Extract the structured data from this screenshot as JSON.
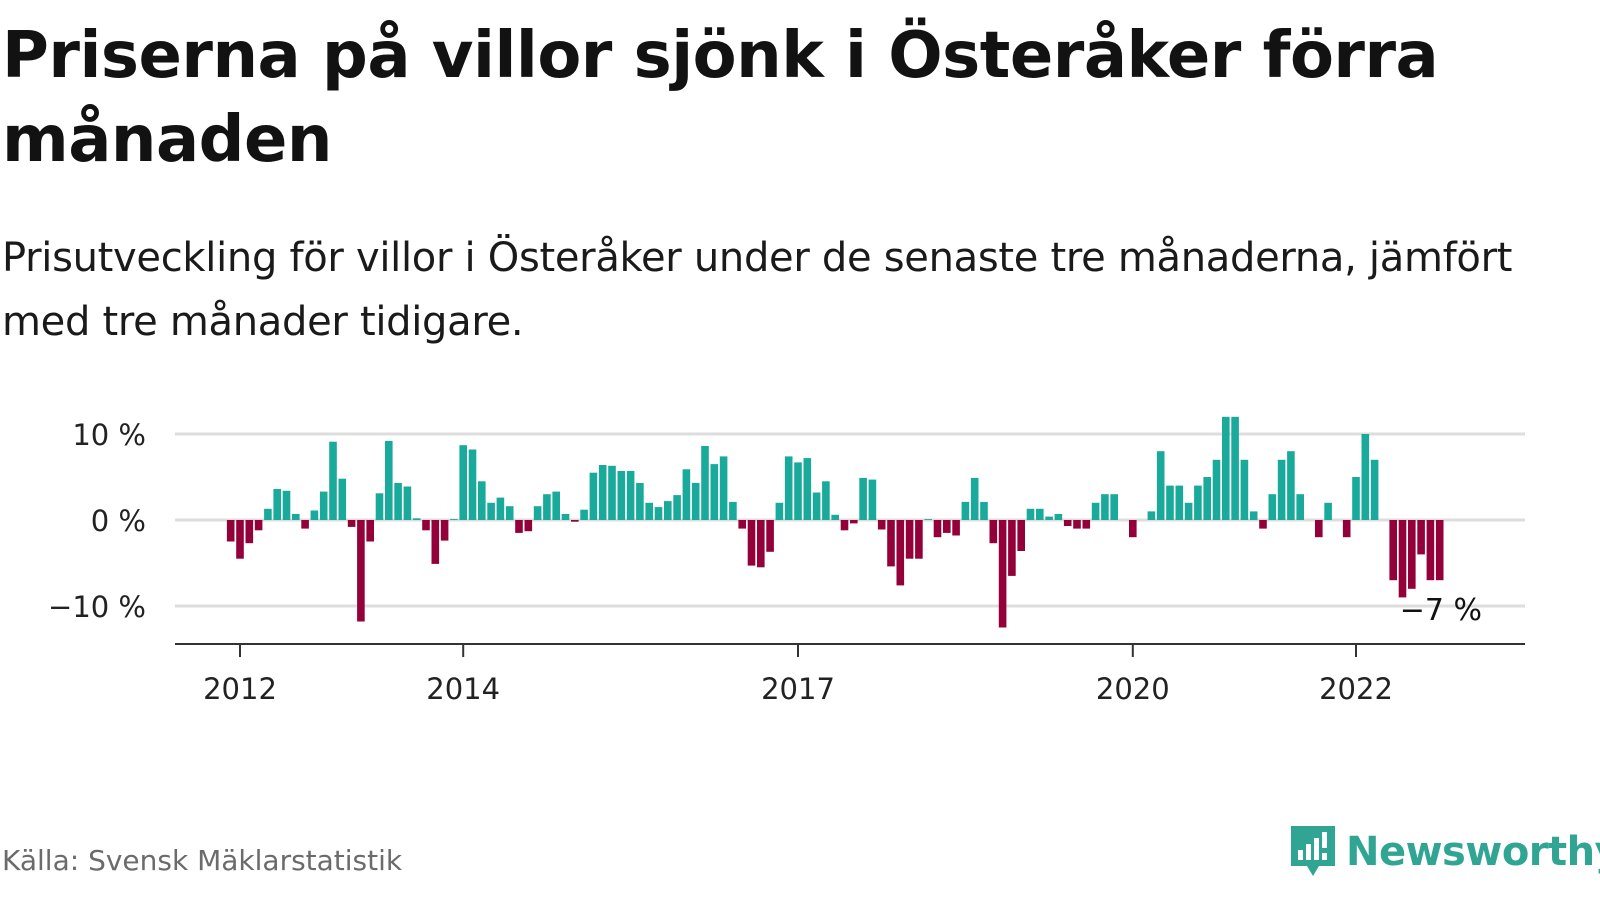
{
  "title": "Priserna på villor sjönk i Österåker förra månaden",
  "subtitle": "Prisutveckling för villor i Österåker under de senaste tre månaderna, jämfört med tre månader tidigare.",
  "source": "Källa: Svensk Mäklarstatistik",
  "logo": {
    "name": "Newsworthy",
    "icon": "bar-chart-speech-bubble-icon"
  },
  "colors": {
    "positive": "#1aaa9b",
    "negative": "#93003a",
    "grid": "#dddddd",
    "axis": "#333333",
    "brand": "#31a594"
  },
  "chart_data": {
    "type": "bar",
    "unit": "%",
    "ylim": [
      -15,
      13
    ],
    "y_ticks": [
      10,
      0,
      -10
    ],
    "y_tick_labels": [
      "10 %",
      "0 %",
      "−10 %"
    ],
    "x_tick_labels": [
      "2012",
      "2014",
      "2017",
      "2020",
      "2022"
    ],
    "x_ticks": [
      "2012-01",
      "2014-01",
      "2017-01",
      "2020-01",
      "2022-01"
    ],
    "grid": true,
    "end_label": "−7 %",
    "series": [
      {
        "start": "2011-12",
        "values": [
          -2.5,
          -4.5,
          -2.7,
          -1.2,
          1.3,
          3.6,
          3.4,
          0.7,
          -1.0,
          1.1,
          3.3,
          9.1,
          4.8,
          -0.8,
          -11.8,
          -2.5,
          3.1,
          9.2,
          4.3,
          3.9,
          0.2,
          -1.2,
          -5.1,
          -2.4,
          0.1,
          8.7,
          8.2,
          4.5,
          2.0,
          2.6,
          1.6,
          -1.5,
          -1.3,
          1.6,
          3.0,
          3.3,
          0.7,
          -0.2,
          1.2,
          5.5,
          6.4,
          6.3,
          5.7,
          5.7,
          4.3,
          2.0,
          1.5,
          2.2,
          2.9,
          5.9,
          4.3,
          8.6,
          6.5,
          7.4,
          2.1,
          -1.0,
          -5.3,
          -5.5,
          -3.7,
          2.0,
          7.4,
          6.7,
          7.2,
          3.2,
          4.5,
          0.6,
          -1.2,
          -0.4,
          4.9,
          4.7,
          -1.1,
          -5.4,
          -7.6,
          -4.5,
          -4.5,
          0.1,
          -2.0,
          -1.5,
          -1.8,
          2.1,
          4.9,
          2.1,
          -2.7,
          -12.5,
          -6.5,
          -3.6,
          1.3,
          1.3,
          0.4,
          0.7,
          -0.7,
          -1.0,
          -1.0,
          2.0,
          3.0,
          3.0,
          0.0,
          -2.0,
          0.0,
          1.0,
          8.0,
          4.0,
          4.0,
          2.0,
          4.0,
          5.0,
          7.0,
          12.0,
          12.0,
          7.0,
          1.0,
          -1.0,
          3.0,
          7.0,
          8.0,
          3.0,
          0.0,
          -2.0,
          2.0,
          0.0,
          -2.0,
          5.0,
          10.0,
          7.0,
          0.0,
          -7.0,
          -9.0,
          -8.0,
          -4.0,
          -7.0,
          -7.0
        ]
      }
    ]
  }
}
